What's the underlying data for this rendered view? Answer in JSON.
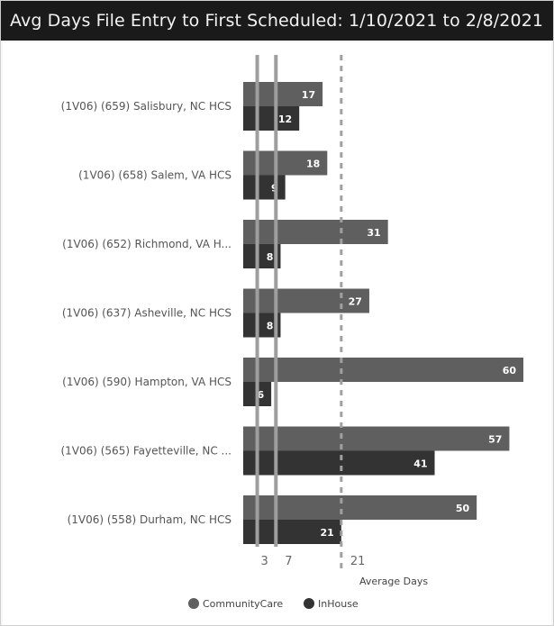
{
  "title": "Avg Days File Entry to First Scheduled: 1/10/2021 to 2/8/2021",
  "colors": {
    "community": "#5f5f5f",
    "inhouse": "#333333",
    "ref_line": "#9e9e9e",
    "avg_line": "#a0a0a0"
  },
  "chart_data": {
    "type": "bar",
    "orientation": "horizontal",
    "categories": [
      "(1V06) (659) Salisbury, NC HCS",
      "(1V06) (658) Salem, VA HCS",
      "(1V06) (652) Richmond, VA H...",
      "(1V06) (637) Asheville, NC HCS",
      "(1V06) (590) Hampton, VA HCS",
      "(1V06) (565) Fayetteville, NC ...",
      "(1V06) (558) Durham, NC HCS"
    ],
    "series": [
      {
        "name": "CommunityCare",
        "values": [
          17,
          18,
          31,
          27,
          60,
          57,
          50
        ]
      },
      {
        "name": "InHouse",
        "values": [
          12,
          9,
          8,
          8,
          6,
          41,
          21
        ]
      }
    ],
    "reference_lines": [
      {
        "value": 3,
        "label": "3",
        "style": "solid"
      },
      {
        "value": 7,
        "label": "7",
        "style": "solid"
      },
      {
        "value": 21,
        "label": "21",
        "style": "dashed"
      }
    ],
    "xlabel": "Average Days",
    "xlim": [
      0,
      60
    ],
    "legend": [
      "CommunityCare",
      "InHouse"
    ],
    "legend_position": "bottom-center",
    "grid": false
  }
}
